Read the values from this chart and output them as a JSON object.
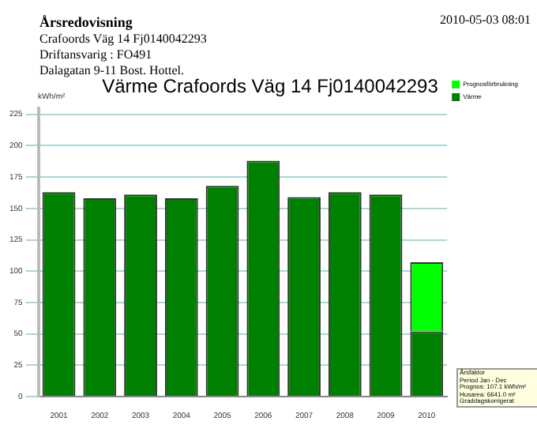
{
  "chart_data": {
    "type": "bar",
    "title": "Värme Crafoords Väg 14 Fj0140042293",
    "ylabel": "kWh/m²",
    "categories": [
      "2001",
      "2002",
      "2003",
      "2004",
      "2005",
      "2006",
      "2007",
      "2008",
      "2009",
      "2010"
    ],
    "stacked": true,
    "series": [
      {
        "name": "Värme",
        "color": "#008000",
        "values": [
          163,
          158,
          161,
          158,
          168,
          188,
          159,
          163,
          161,
          52
        ]
      },
      {
        "name": "Prognosförbrukning",
        "color": "#00ff00",
        "values": [
          null,
          null,
          null,
          null,
          null,
          null,
          null,
          null,
          null,
          55
        ]
      }
    ],
    "ylim": [
      0,
      230
    ],
    "yticks": [
      0,
      25,
      50,
      75,
      100,
      125,
      150,
      175,
      200,
      225
    ],
    "grid": "y",
    "legend": "top right",
    "annotations": [
      "Årsredovisning",
      "Crafoords Väg 14 Fj0140042293",
      "Driftansvarig : FO491",
      "Dalagatan 9-11 Bost. Hottel.",
      "2010-05-03 08:01",
      "Årsfaktor\nPeriod Jan - Dec\nPrognos: 107.1 kWh/m²\nHusarea: 6641.0 m²\nGraddagskorrigerat"
    ]
  }
}
